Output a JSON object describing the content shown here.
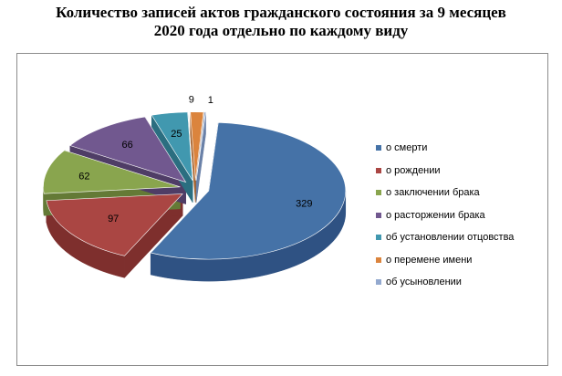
{
  "chart_data": {
    "type": "pie",
    "title_line1": "Количество записей актов гражданского состояния за 9 месяцев",
    "title_line2": "2020 года отдельно по каждому виду",
    "legend_position": "right",
    "slices": [
      {
        "label": "о смерти",
        "value": 329,
        "color": "#4572A7",
        "side": "#2F5283",
        "value_label": "329"
      },
      {
        "label": "о рождении",
        "value": 97,
        "color": "#AA4643",
        "side": "#7E2F2D",
        "value_label": "97"
      },
      {
        "label": "о заключении брака",
        "value": 62,
        "color": "#89A54E",
        "side": "#647A36",
        "value_label": "62"
      },
      {
        "label": "о расторжении брака",
        "value": 66,
        "color": "#71588F",
        "side": "#4F3D66",
        "value_label": "66"
      },
      {
        "label": "об установлении отцовства",
        "value": 25,
        "color": "#4198AF",
        "side": "#2B6E80",
        "value_label": "25"
      },
      {
        "label": "о перемене имени",
        "value": 9,
        "color": "#DB843D",
        "side": "#A65F26",
        "value_label": "9"
      },
      {
        "label": "об усыновлении",
        "value": 1,
        "color": "#93A9CF",
        "side": "#6A81A8",
        "value_label": "1"
      }
    ]
  }
}
